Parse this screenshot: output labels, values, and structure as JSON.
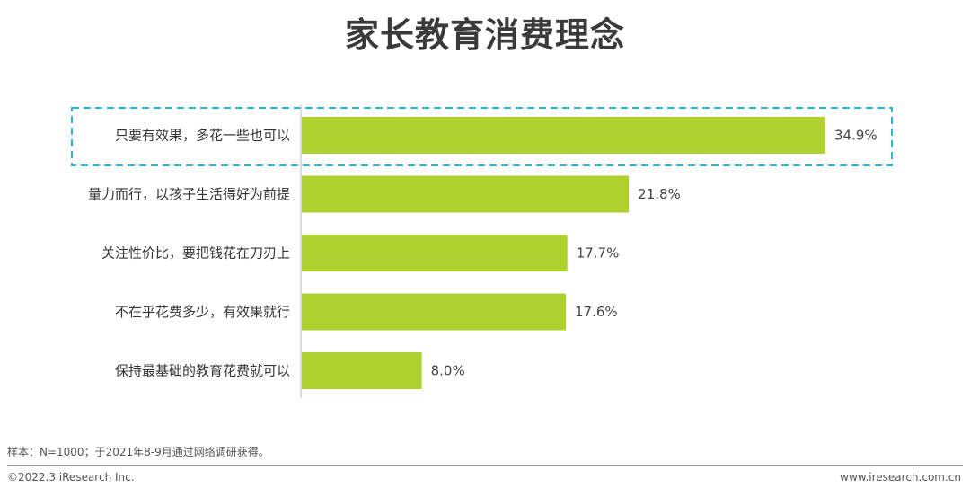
{
  "title": "家长教育消费理念",
  "chart_data": {
    "type": "bar",
    "orientation": "horizontal",
    "categories": [
      "只要有效果，多花一些也可以",
      "量力而行，以孩子生活得好为前提",
      "关注性价比，要把钱花在刀刃上",
      "不在乎花费多少，有效果就行",
      "保持最基础的教育花费就可以"
    ],
    "values": [
      34.9,
      21.8,
      17.7,
      17.6,
      8.0
    ],
    "value_labels": [
      "34.9%",
      "21.8%",
      "17.7%",
      "17.6%",
      "8.0%"
    ],
    "xlim": [
      0,
      40
    ],
    "bar_color": "#aed130",
    "highlight_color": "#29b6d8",
    "highlighted_category_index": 0,
    "grid": false
  },
  "footer": {
    "note": "样本：N=1000；于2021年8-9月通过网络调研获得。",
    "copyright": "©2022.3 iResearch Inc.",
    "website": "www.iresearch.com.cn"
  }
}
